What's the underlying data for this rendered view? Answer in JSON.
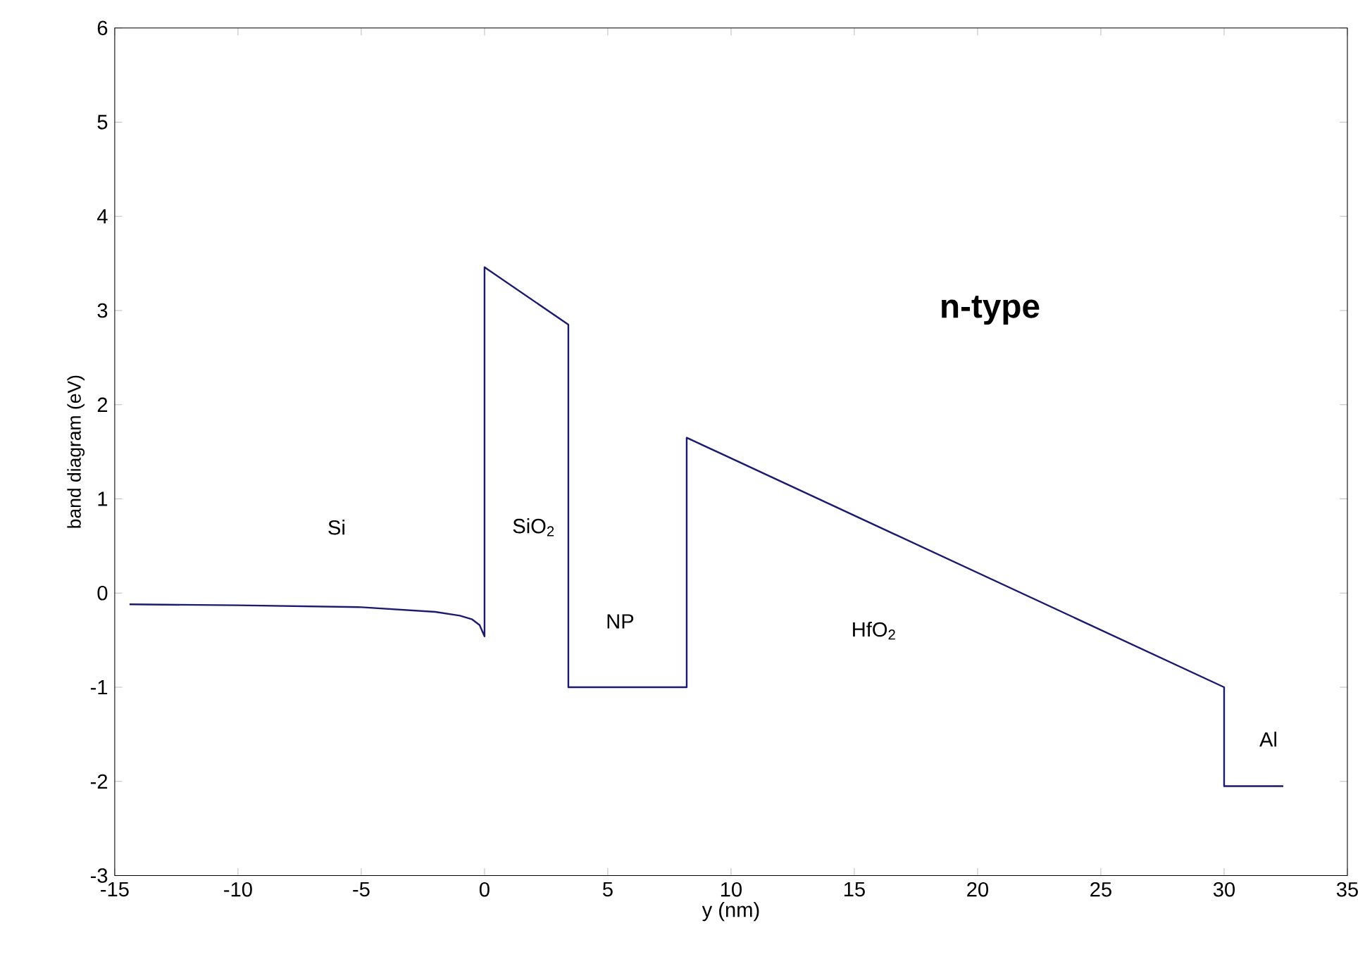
{
  "chart_data": {
    "type": "line",
    "xlabel": "y (nm)",
    "ylabel": "band diagram (eV)",
    "xlim": [
      -15,
      35
    ],
    "ylim": [
      -3,
      6
    ],
    "xticks": [
      -15,
      -10,
      -5,
      0,
      5,
      10,
      15,
      20,
      25,
      30,
      35
    ],
    "yticks": [
      -3,
      -2,
      -1,
      0,
      1,
      2,
      3,
      4,
      5,
      6
    ],
    "grid": false,
    "marker": "none",
    "line_style": "solid",
    "series": [
      {
        "color": "#1a1a6e",
        "x": [
          -14.4,
          -10,
          -5,
          -2,
          -1,
          -0.5,
          -0.2,
          0,
          0,
          3.4,
          3.4,
          8.2,
          8.2,
          30,
          30,
          32.4
        ],
        "values": [
          -0.12,
          -0.13,
          -0.15,
          -0.2,
          -0.24,
          -0.28,
          -0.34,
          -0.46,
          3.46,
          2.85,
          -1,
          -1,
          1.65,
          -1,
          -2.05,
          -2.05
        ]
      }
    ],
    "annotations": [
      "Si",
      "SiO$_{2}$",
      "NP",
      "HfO$_{2}$",
      "Al",
      "n-type"
    ]
  }
}
